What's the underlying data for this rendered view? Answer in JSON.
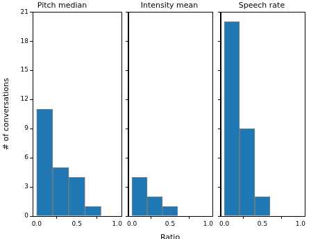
{
  "chart_data": [
    {
      "type": "histogram",
      "title": "Pitch median",
      "ylabel": "# of conversations",
      "bins": [
        0,
        0.2,
        0.4,
        0.6,
        0.8,
        1.0
      ],
      "values": [
        11,
        5,
        4,
        1,
        0
      ],
      "color": "#1f77b4",
      "xlim": [
        -0.05,
        1.05
      ],
      "xticks": [
        {
          "value": 0,
          "label": "0.0"
        },
        {
          "value": 0.5,
          "label": "0.5"
        },
        {
          "value": 1,
          "label": "1.0"
        }
      ],
      "ylim": [
        0,
        21
      ],
      "yticks": [
        0,
        3,
        6,
        9,
        12,
        15,
        18,
        21
      ],
      "grid": false
    },
    {
      "type": "histogram",
      "title": "Intensity mean",
      "xlabel": "Ratio",
      "bins": [
        0,
        0.2,
        0.4,
        0.6,
        0.8,
        1.0
      ],
      "values": [
        4,
        2,
        1,
        0,
        0
      ],
      "color": "#1f77b4",
      "xlim": [
        -0.05,
        1.05
      ],
      "xticks": [
        {
          "value": 0,
          "label": "0.0"
        },
        {
          "value": 0.5,
          "label": "0.5"
        },
        {
          "value": 1,
          "label": "1.0"
        }
      ],
      "ylim": [
        0,
        21
      ],
      "yticks": [
        0,
        3,
        6,
        9,
        12,
        15,
        18,
        21
      ],
      "grid": false,
      "tick_labels": "x"
    },
    {
      "type": "histogram",
      "title": "Speech rate",
      "bins": [
        0,
        0.2,
        0.4,
        0.6,
        0.8,
        1.0
      ],
      "values": [
        20,
        9,
        2,
        0,
        0
      ],
      "color": "#1f77b4",
      "xlim": [
        -0.05,
        1.05
      ],
      "xticks": [
        {
          "value": 0,
          "label": "0.0"
        },
        {
          "value": 0.5,
          "label": "0.5"
        },
        {
          "value": 1,
          "label": "1.0"
        }
      ],
      "ylim": [
        0,
        21
      ],
      "yticks": [
        0,
        3,
        6,
        9,
        12,
        15,
        18,
        21
      ],
      "grid": false,
      "tick_labels": "x"
    }
  ]
}
